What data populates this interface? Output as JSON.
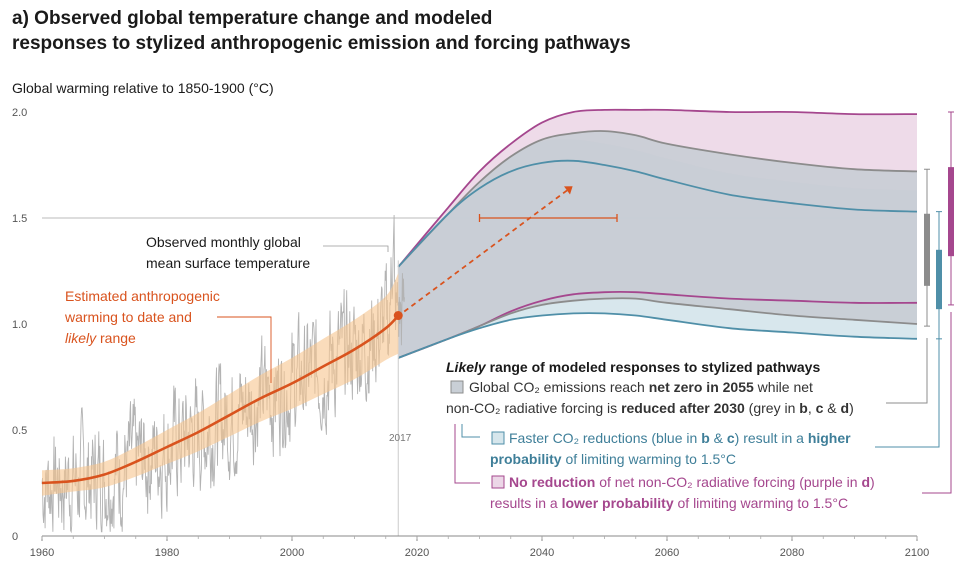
{
  "header": {
    "title_line1": "a) Observed global temperature change and modeled",
    "title_line2": "responses to stylized anthropogenic emission and forcing pathways",
    "y_axis_label": "Global warming relative to 1850-1900 (°C)"
  },
  "chart_data": {
    "type": "area",
    "xlim": [
      1960,
      2100
    ],
    "ylim": [
      0,
      2.0
    ],
    "x_ticks": [
      "1960",
      "1980",
      "2000",
      "2020",
      "2040",
      "2060",
      "2080",
      "2100"
    ],
    "y_ticks": [
      "0",
      "0.5",
      "1.0",
      "1.5",
      "2.0"
    ],
    "reference_line_y": 1.5,
    "marker_year_label": "2017",
    "colors": {
      "observed": "#b3b3b3",
      "estimated": "#d9531e",
      "estimated_band": "#f7c48e",
      "grey": "#8c8c8c",
      "grey_fill": "#c9cfd6",
      "blue": "#4f8fa8",
      "blue_fill": "#d6e6ec",
      "purple": "#a5478e",
      "purple_fill": "#ecd7e7"
    },
    "estimated_warming": {
      "x": [
        1960,
        1965,
        1970,
        1975,
        1980,
        1985,
        1990,
        1995,
        2000,
        2005,
        2010,
        2015,
        2017
      ],
      "central": [
        0.25,
        0.26,
        0.29,
        0.35,
        0.42,
        0.49,
        0.57,
        0.65,
        0.72,
        0.8,
        0.88,
        0.98,
        1.04
      ],
      "lower": [
        0.19,
        0.21,
        0.23,
        0.28,
        0.34,
        0.4,
        0.47,
        0.54,
        0.6,
        0.67,
        0.74,
        0.83,
        0.86
      ],
      "upper": [
        0.31,
        0.32,
        0.35,
        0.42,
        0.5,
        0.58,
        0.67,
        0.76,
        0.84,
        0.93,
        1.02,
        1.13,
        1.24
      ]
    },
    "estimated_point": {
      "x": 2017,
      "y": 1.04
    },
    "projection_arrow": {
      "from": [
        2017,
        1.04
      ],
      "to": [
        2044,
        1.63
      ]
    },
    "range_bar_1p5": {
      "x_from": 2030,
      "x_to": 2052,
      "y": 1.5
    },
    "pathways": {
      "x": [
        2017,
        2025,
        2030,
        2035,
        2040,
        2045,
        2050,
        2055,
        2060,
        2070,
        2080,
        2090,
        2100
      ],
      "grey_upper": [
        1.27,
        1.52,
        1.67,
        1.79,
        1.87,
        1.9,
        1.91,
        1.89,
        1.85,
        1.8,
        1.76,
        1.73,
        1.72
      ],
      "grey_lower": [
        0.84,
        0.93,
        0.99,
        1.05,
        1.09,
        1.11,
        1.12,
        1.12,
        1.1,
        1.07,
        1.04,
        1.02,
        1.0
      ],
      "blue_upper": [
        1.27,
        1.52,
        1.64,
        1.72,
        1.76,
        1.77,
        1.75,
        1.72,
        1.68,
        1.61,
        1.57,
        1.54,
        1.53
      ],
      "blue_lower": [
        0.84,
        0.93,
        0.98,
        1.02,
        1.04,
        1.05,
        1.05,
        1.04,
        1.02,
        0.98,
        0.96,
        0.94,
        0.93
      ],
      "purple_upper": [
        1.27,
        1.55,
        1.72,
        1.85,
        1.95,
        2.0,
        2.01,
        2.01,
        2.01,
        2.0,
        2.0,
        1.99,
        1.99
      ],
      "purple_lower": [
        0.84,
        0.93,
        0.99,
        1.06,
        1.11,
        1.14,
        1.15,
        1.15,
        1.14,
        1.12,
        1.11,
        1.1,
        1.1
      ]
    },
    "side_bars": [
      {
        "name": "grey",
        "low": 0.99,
        "high": 1.73,
        "box_low": 1.18,
        "box_high": 1.52
      },
      {
        "name": "blue",
        "low": 0.93,
        "high": 1.53,
        "box_low": 1.07,
        "box_high": 1.35
      },
      {
        "name": "purple",
        "low": 1.09,
        "high": 2.0,
        "box_low": 1.32,
        "box_high": 1.74
      }
    ]
  },
  "annotations": {
    "observed_line1": "Observed monthly global",
    "observed_line2": "mean surface temperature",
    "estimated_line1": "Estimated anthropogenic",
    "estimated_line2": "warming to date and",
    "estimated_line3_italic": "likely",
    "estimated_line3_rest": " range"
  },
  "legend": {
    "heading_italic": "Likely",
    "heading_rest": " range of modeled responses to stylized pathways",
    "grey_line1_a": "Global CO₂ emissions reach ",
    "grey_line1_b": "net zero in 2055",
    "grey_line1_c": " while net",
    "grey_line2_a": "non-CO₂ radiative forcing is ",
    "grey_line2_b": "reduced after 2030",
    "grey_line2_c": " (grey in ",
    "grey_line2_d": "b",
    "grey_line2_e": ", ",
    "grey_line2_f": "c",
    "grey_line2_g": " & ",
    "grey_line2_h": "d",
    "grey_line2_i": ")",
    "blue_line1_a": "Faster CO₂ reductions (blue in ",
    "blue_line1_b": "b",
    "blue_line1_c": " & ",
    "blue_line1_d": "c",
    "blue_line1_e": ") result in a ",
    "blue_line1_f": "higher",
    "blue_line2_a": "probability",
    "blue_line2_b": " of limiting warming to 1.5°C",
    "purple_line1_a": "No reduction",
    "purple_line1_b": " of net non-CO₂ radiative forcing (purple in ",
    "purple_line1_c": "d",
    "purple_line1_d": ")",
    "purple_line2_a": "results in a ",
    "purple_line2_b": "lower probability",
    "purple_line2_c": " of limiting warming to 1.5°C"
  }
}
